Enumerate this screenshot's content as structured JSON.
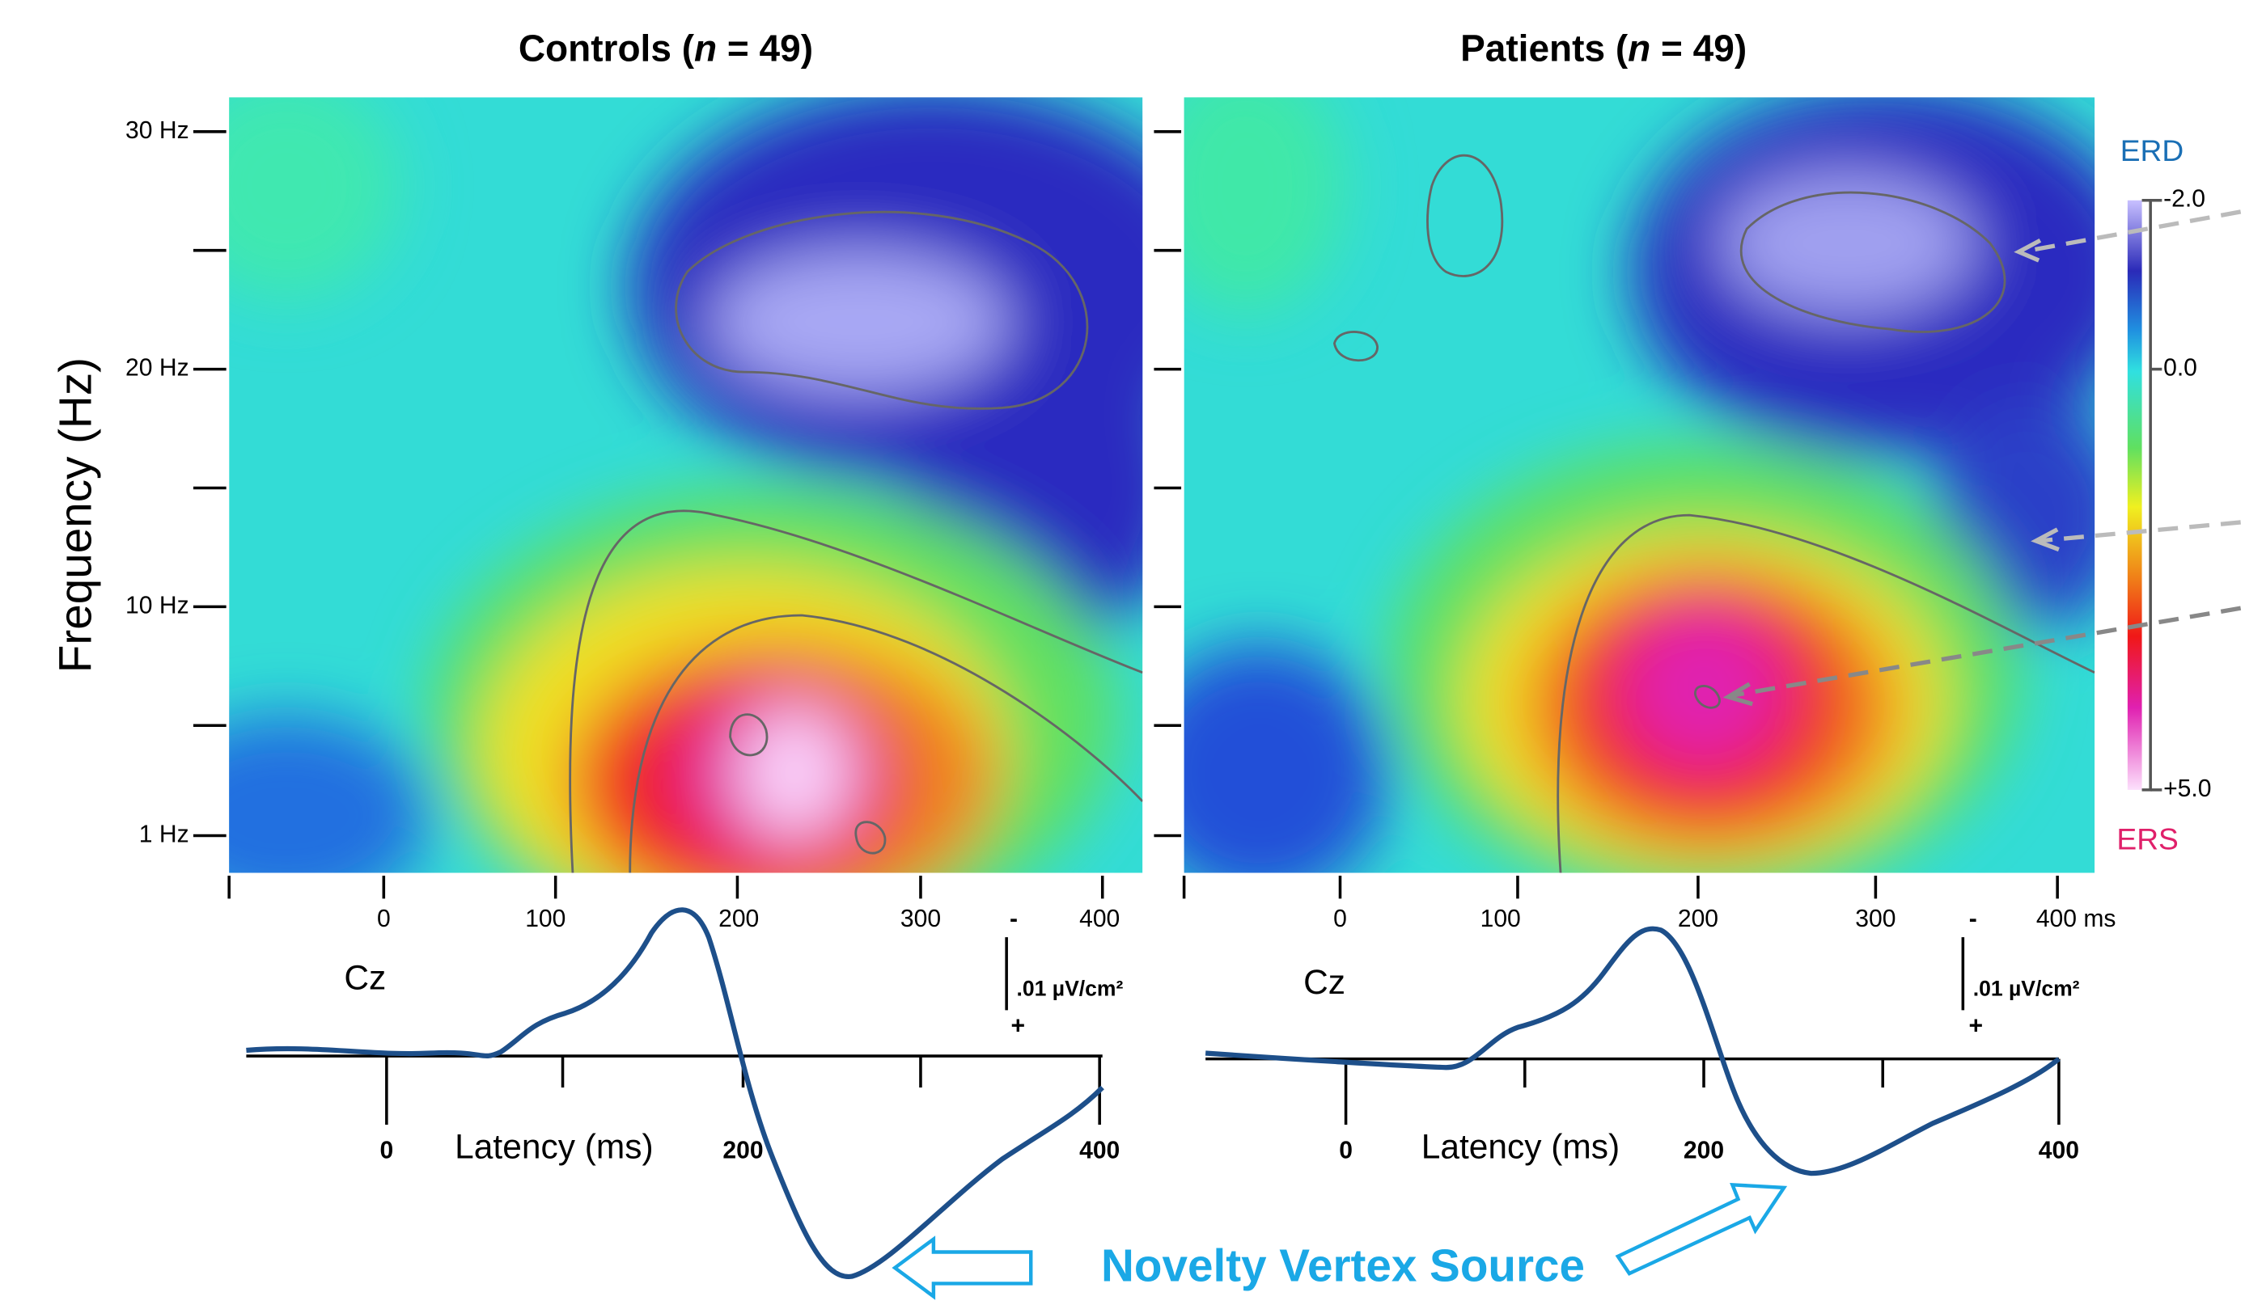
{
  "panels": [
    {
      "title": {
        "pre": "Controls (",
        "italic": "n",
        "post": " = 49)"
      },
      "x_ticks": [
        "0",
        "100",
        "200",
        "300",
        "400"
      ],
      "erp": {
        "channel": "Cz",
        "scale": ".01 µV/cm²",
        "minus": "-",
        "plus": "+",
        "ticks": [
          "0",
          "200",
          "400"
        ],
        "x_label": "Latency (ms)"
      }
    },
    {
      "title": {
        "pre": "Patients (",
        "italic": "n",
        "post": " = 49)"
      },
      "x_ticks": [
        "0",
        "100",
        "200",
        "300",
        "400 ms"
      ],
      "erp": {
        "channel": "Cz",
        "scale": ".01 µV/cm²",
        "minus": "-",
        "plus": "+",
        "ticks": [
          "0",
          "200",
          "400"
        ],
        "x_label": "Latency (ms)"
      }
    }
  ],
  "y_axis": {
    "label": "Frequency (Hz)",
    "ticks": [
      "30 Hz",
      "20 Hz",
      "10 Hz",
      "1 Hz"
    ]
  },
  "colorbar": {
    "top_label": "ERD",
    "ticks": [
      "-2.0",
      "0.0",
      "+5.0"
    ],
    "bottom_label": "ERS"
  },
  "annotation": "Novelty Vertex Source"
}
